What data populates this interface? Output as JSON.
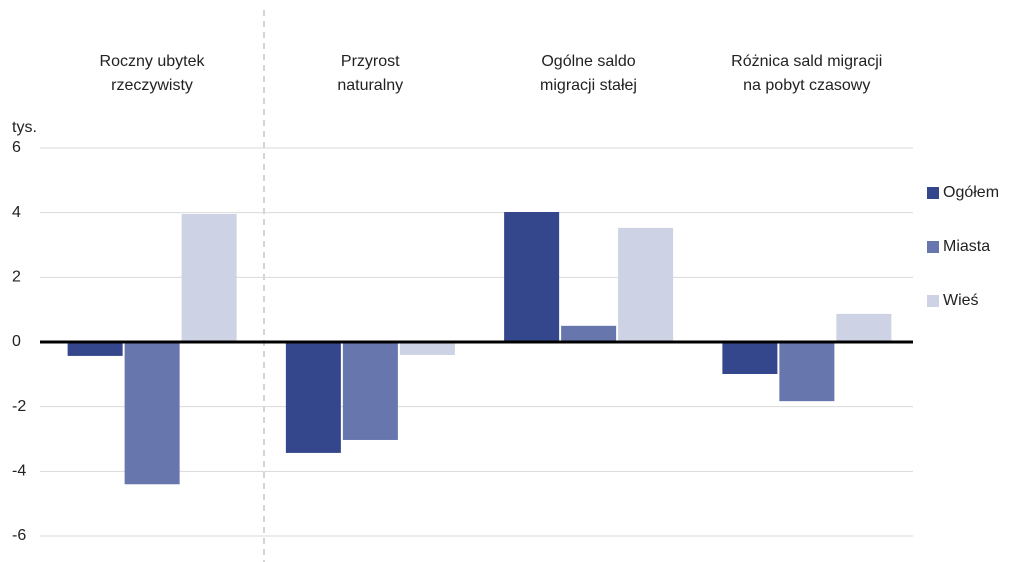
{
  "chart_data": {
    "type": "bar",
    "y_unit": "tys.",
    "categories": [
      "Roczny ubytek\nrzeczywisty",
      "Przyrost\nnaturalny",
      "Ogólne saldo\nmigracji stałej",
      "Różnica sald migracji\nna pobyt czasowy"
    ],
    "series": [
      {
        "name": "Ogółem",
        "color": "#34468c",
        "values": [
          -0.43,
          -3.43,
          4.02,
          -0.99
        ]
      },
      {
        "name": "Miasta",
        "color": "#6776ad",
        "values": [
          -4.4,
          -3.03,
          0.5,
          -1.83
        ]
      },
      {
        "name": "Wieś",
        "color": "#cdd2e4",
        "values": [
          3.96,
          -0.4,
          3.53,
          0.87
        ]
      }
    ],
    "ylim": [
      -6,
      6
    ],
    "yticks": [
      6,
      4,
      2,
      0,
      -2,
      -4,
      -6
    ],
    "grid": true,
    "legend": "right"
  }
}
